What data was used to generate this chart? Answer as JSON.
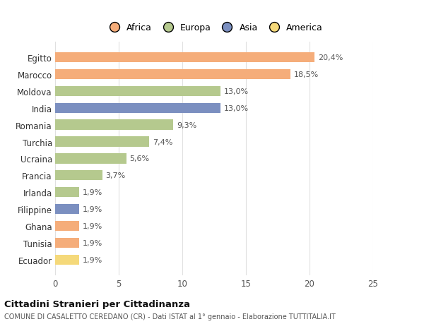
{
  "countries": [
    "Egitto",
    "Marocco",
    "Moldova",
    "India",
    "Romania",
    "Turchia",
    "Ucraina",
    "Francia",
    "Irlanda",
    "Filippine",
    "Ghana",
    "Tunisia",
    "Ecuador"
  ],
  "values": [
    20.4,
    18.5,
    13.0,
    13.0,
    9.3,
    7.4,
    5.6,
    3.7,
    1.9,
    1.9,
    1.9,
    1.9,
    1.9
  ],
  "labels": [
    "20,4%",
    "18,5%",
    "13,0%",
    "13,0%",
    "9,3%",
    "7,4%",
    "5,6%",
    "3,7%",
    "1,9%",
    "1,9%",
    "1,9%",
    "1,9%",
    "1,9%"
  ],
  "colors": [
    "#F5AD7A",
    "#F5AD7A",
    "#B5C98E",
    "#7B8FC0",
    "#B5C98E",
    "#B5C98E",
    "#B5C98E",
    "#B5C98E",
    "#B5C98E",
    "#7B8FC0",
    "#F5AD7A",
    "#F5AD7A",
    "#F5D97A"
  ],
  "legend": [
    {
      "label": "Africa",
      "color": "#F5AD7A"
    },
    {
      "label": "Europa",
      "color": "#B5C98E"
    },
    {
      "label": "Asia",
      "color": "#7B8FC0"
    },
    {
      "label": "America",
      "color": "#F5D97A"
    }
  ],
  "xlim": [
    0,
    25
  ],
  "xticks": [
    0,
    5,
    10,
    15,
    20,
    25
  ],
  "title": "Cittadini Stranieri per Cittadinanza",
  "subtitle": "COMUNE DI CASALETTO CEREDANO (CR) - Dati ISTAT al 1° gennaio - Elaborazione TUTTITALIA.IT",
  "bg_color": "#ffffff",
  "grid_color": "#e0e0e0",
  "bar_height": 0.6
}
